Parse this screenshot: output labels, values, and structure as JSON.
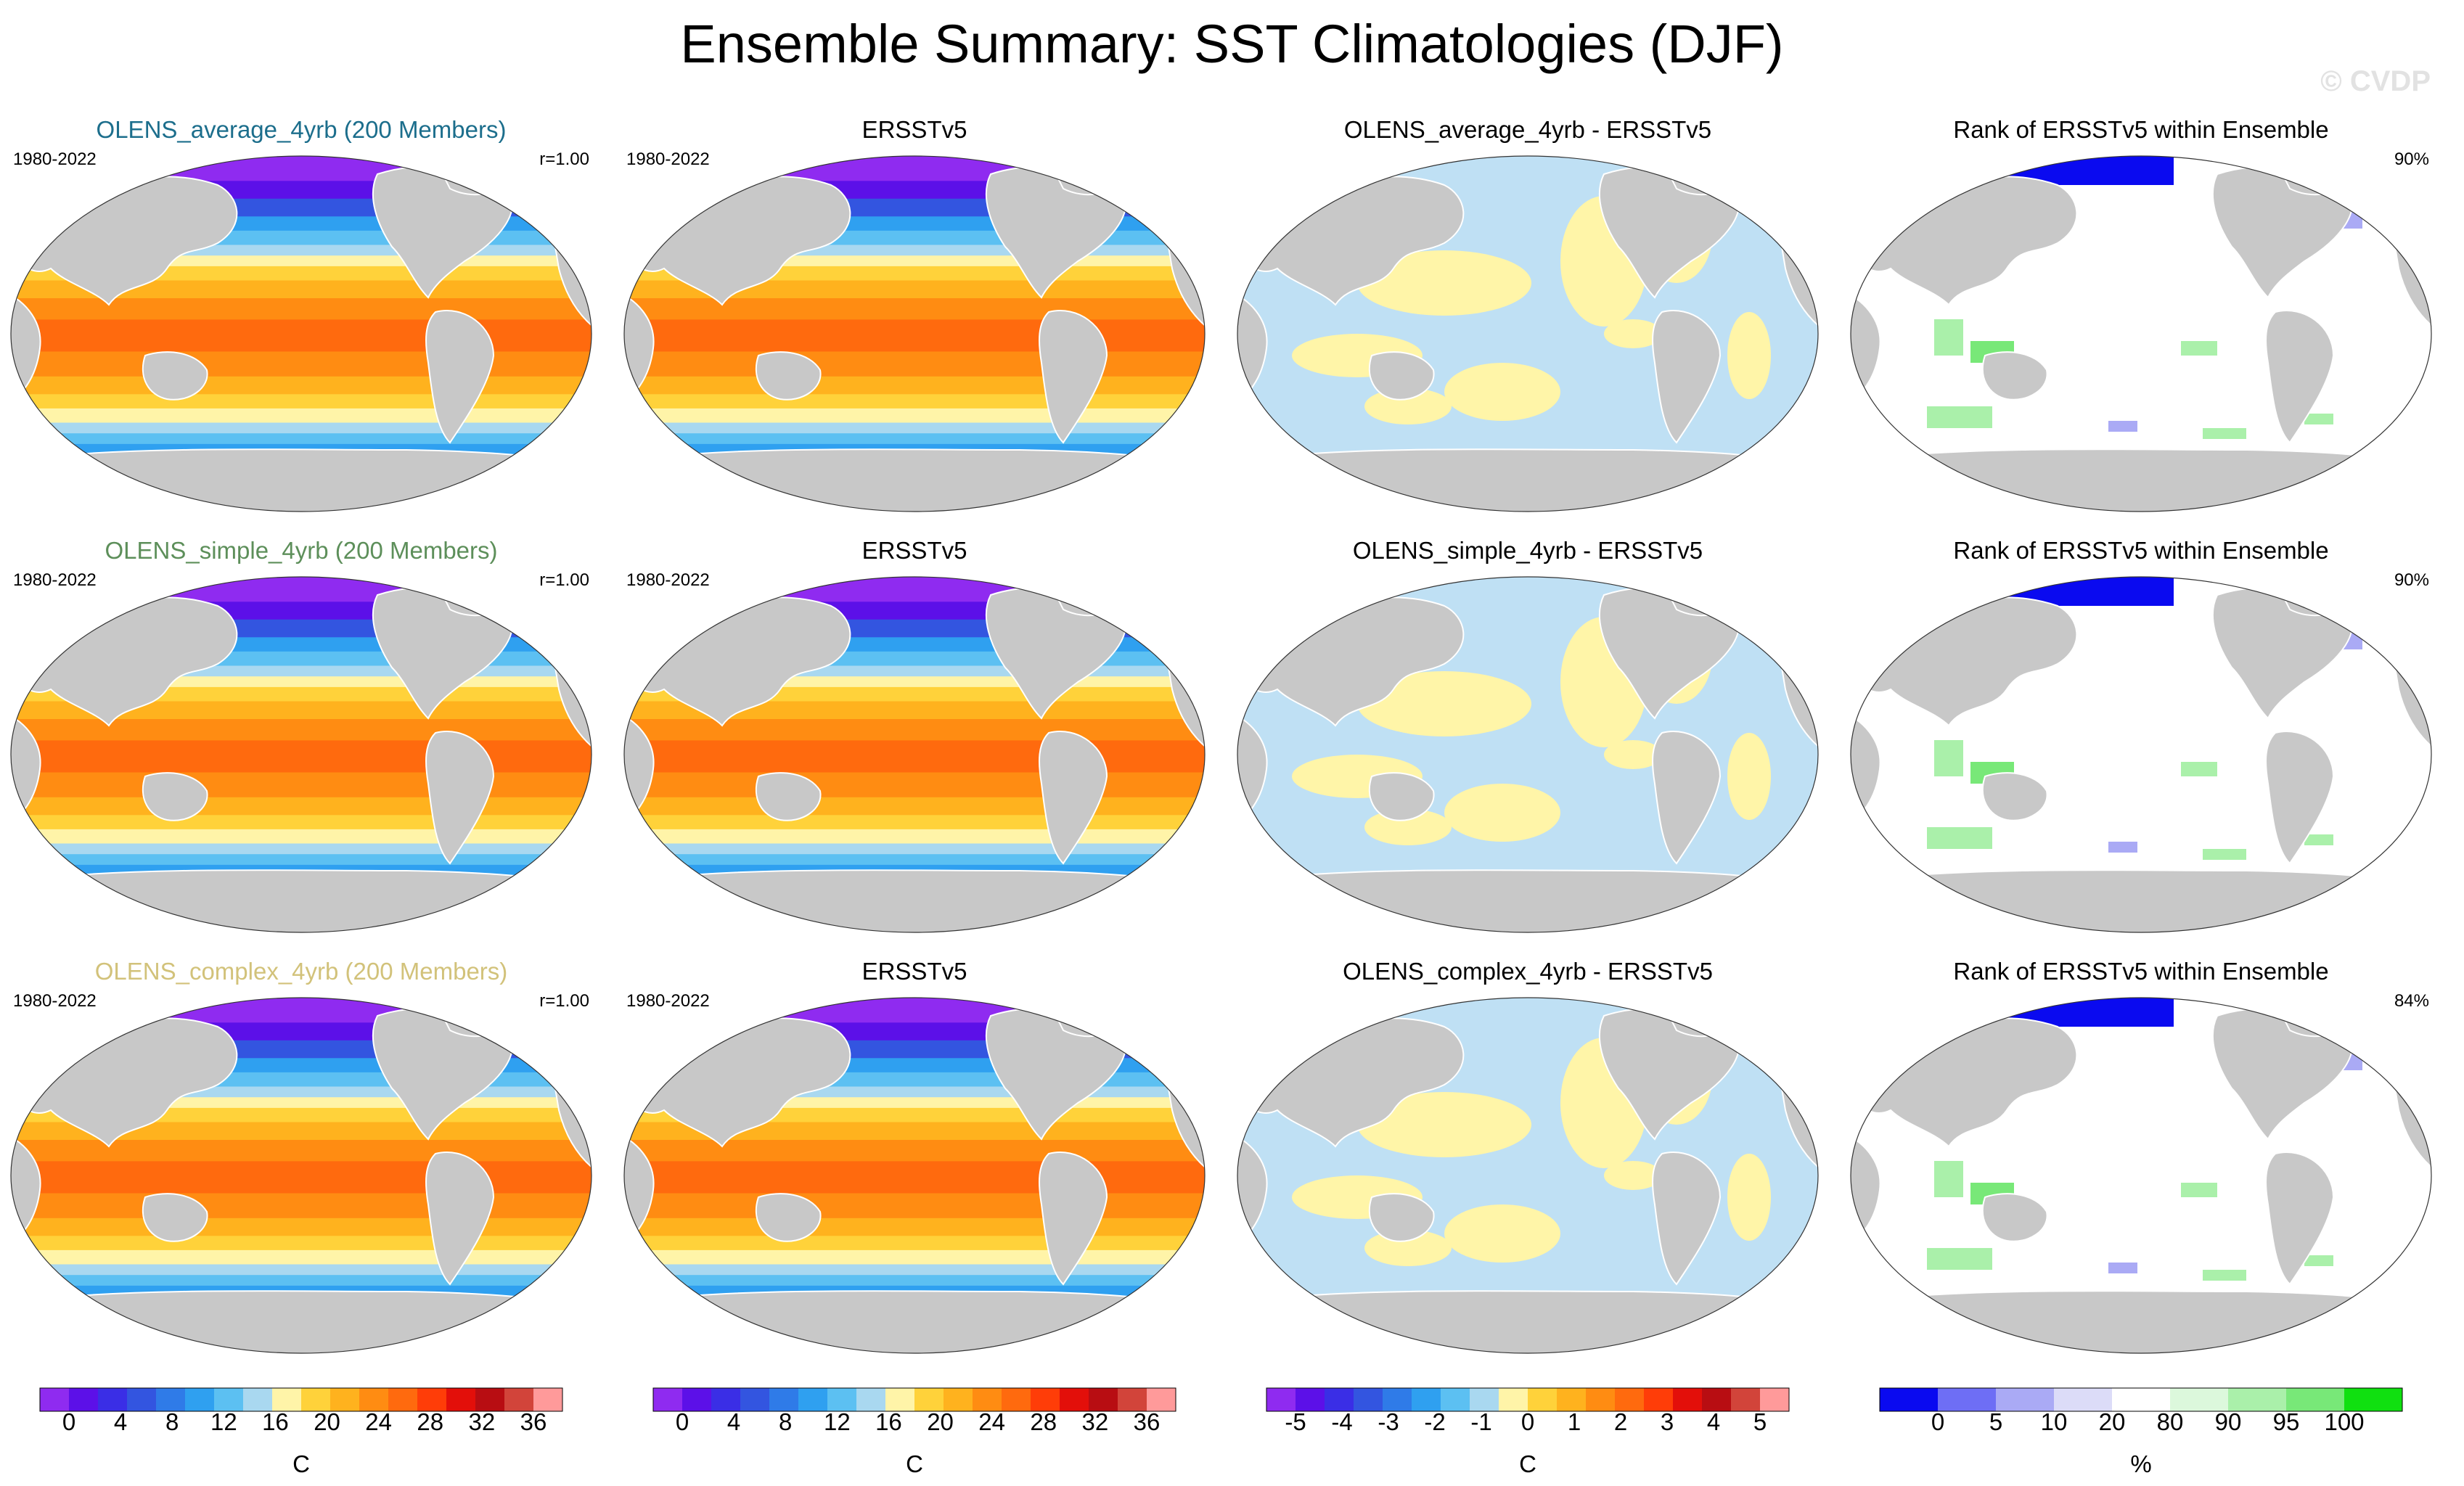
{
  "figure": {
    "title": "Ensemble Summary: SST Climatologies (DJF)",
    "watermark": "© CVDP"
  },
  "colors": {
    "land": "#c8c8c8",
    "coastline": "#ffffff",
    "ensemble_title_colors": [
      "#1c6e8c",
      "#5d8f5a",
      "#d2c27a"
    ],
    "sst_palette": [
      "#8f2bf0",
      "#5c10e8",
      "#3a2ee6",
      "#3355e0",
      "#2f7be8",
      "#2fa0f0",
      "#5cc0f2",
      "#a9d8f0",
      "#fff4a8",
      "#ffd23a",
      "#ffb21e",
      "#ff8c12",
      "#ff6a0e",
      "#ff3d08",
      "#e30f0a",
      "#b80d12",
      "#d2443a",
      "#ff9a9a"
    ],
    "diff_palette": [
      "#8f2bf0",
      "#5c10e8",
      "#3a2ee6",
      "#3355e0",
      "#2f7be8",
      "#2fa0f0",
      "#5cc0f2",
      "#a9d8f0",
      "#fff4a8",
      "#ffd23a",
      "#ffb21e",
      "#ff8c12",
      "#ff6a0e",
      "#ff3d08",
      "#e30f0a",
      "#b80d12",
      "#d2443a",
      "#ff9a9a"
    ],
    "rank_palette": [
      "#0a0af0",
      "#6e6ef5",
      "#aaaaf5",
      "#dcdcf8",
      "#ffffff",
      "#dcf8dc",
      "#aaf0aa",
      "#78e878",
      "#10e010"
    ]
  },
  "rows": [
    {
      "ensemble": {
        "title": "OLENS_average_4yrb (200 Members)",
        "period": "1980-2022",
        "stat": "r=1.00"
      },
      "obs": {
        "title": "ERSSTv5",
        "period": "1980-2022"
      },
      "diff": {
        "title": "OLENS_average_4yrb - ERSSTv5"
      },
      "rank": {
        "title": "Rank of ERSSTv5 within Ensemble",
        "stat": "90%"
      }
    },
    {
      "ensemble": {
        "title": "OLENS_simple_4yrb (200 Members)",
        "period": "1980-2022",
        "stat": "r=1.00"
      },
      "obs": {
        "title": "ERSSTv5",
        "period": "1980-2022"
      },
      "diff": {
        "title": "OLENS_simple_4yrb - ERSSTv5"
      },
      "rank": {
        "title": "Rank of ERSSTv5 within Ensemble",
        "stat": "90%"
      }
    },
    {
      "ensemble": {
        "title": "OLENS_complex_4yrb (200 Members)",
        "period": "1980-2022",
        "stat": "r=1.00"
      },
      "obs": {
        "title": "ERSSTv5",
        "period": "1980-2022"
      },
      "diff": {
        "title": "OLENS_complex_4yrb - ERSSTv5"
      },
      "rank": {
        "title": "Rank of ERSSTv5 within Ensemble",
        "stat": "84%"
      }
    }
  ],
  "colorbars": [
    {
      "ticks": [
        "0",
        "4",
        "8",
        "12",
        "16",
        "20",
        "24",
        "28",
        "32",
        "36"
      ],
      "units": "C"
    },
    {
      "ticks": [
        "0",
        "4",
        "8",
        "12",
        "16",
        "20",
        "24",
        "28",
        "32",
        "36"
      ],
      "units": "C"
    },
    {
      "ticks": [
        "-5",
        "-4",
        "-3",
        "-2",
        "-1",
        "0",
        "1",
        "2",
        "3",
        "4",
        "5"
      ],
      "units": "C"
    },
    {
      "ticks": [
        "0",
        "5",
        "10",
        "20",
        "80",
        "90",
        "95",
        "100"
      ],
      "units": "%"
    }
  ],
  "chart_data": [
    {
      "type": "heatmap",
      "title": "OLENS_average_4yrb (200 Members)",
      "period": "1980-2022",
      "pattern_correlation": 1.0,
      "units": "C",
      "colorbar_range": [
        0,
        36
      ],
      "projection": "Robinson, Pacific-centered"
    },
    {
      "type": "heatmap",
      "title": "ERSSTv5",
      "period": "1980-2022",
      "units": "C",
      "colorbar_range": [
        0,
        36
      ]
    },
    {
      "type": "heatmap",
      "title": "OLENS_average_4yrb - ERSSTv5",
      "units": "C",
      "colorbar_range": [
        -5,
        5
      ]
    },
    {
      "type": "heatmap",
      "title": "Rank of ERSSTv5 within Ensemble",
      "units": "%",
      "area_between_10_and_90_percent": 90
    },
    {
      "type": "heatmap",
      "title": "OLENS_simple_4yrb (200 Members)",
      "period": "1980-2022",
      "pattern_correlation": 1.0,
      "units": "C",
      "colorbar_range": [
        0,
        36
      ]
    },
    {
      "type": "heatmap",
      "title": "ERSSTv5",
      "period": "1980-2022",
      "units": "C",
      "colorbar_range": [
        0,
        36
      ]
    },
    {
      "type": "heatmap",
      "title": "OLENS_simple_4yrb - ERSSTv5",
      "units": "C",
      "colorbar_range": [
        -5,
        5
      ]
    },
    {
      "type": "heatmap",
      "title": "Rank of ERSSTv5 within Ensemble",
      "units": "%",
      "area_between_10_and_90_percent": 90
    },
    {
      "type": "heatmap",
      "title": "OLENS_complex_4yrb (200 Members)",
      "period": "1980-2022",
      "pattern_correlation": 1.0,
      "units": "C",
      "colorbar_range": [
        0,
        36
      ]
    },
    {
      "type": "heatmap",
      "title": "ERSSTv5",
      "period": "1980-2022",
      "units": "C",
      "colorbar_range": [
        0,
        36
      ]
    },
    {
      "type": "heatmap",
      "title": "OLENS_complex_4yrb - ERSSTv5",
      "units": "C",
      "colorbar_range": [
        -5,
        5
      ]
    },
    {
      "type": "heatmap",
      "title": "Rank of ERSSTv5 within Ensemble",
      "units": "%",
      "area_between_10_and_90_percent": 84
    }
  ]
}
